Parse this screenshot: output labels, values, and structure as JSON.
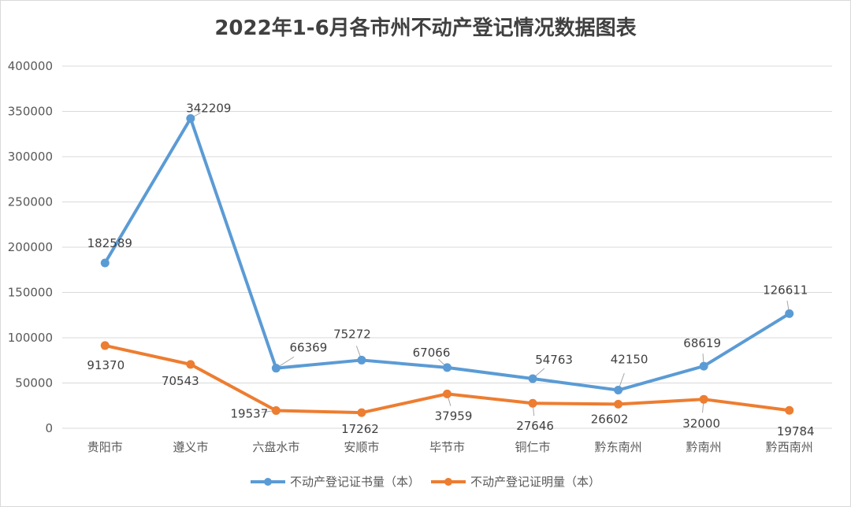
{
  "chart_data": {
    "type": "line",
    "title": "2022年1-6月各市州不动产登记情况数据图表",
    "categories": [
      "贵阳市",
      "遵义市",
      "六盘水市",
      "安顺市",
      "毕节市",
      "铜仁市",
      "黔东南州",
      "黔南州",
      "黔西南州"
    ],
    "ylim": [
      0,
      400000
    ],
    "yticks": [
      0,
      50000,
      100000,
      150000,
      200000,
      250000,
      300000,
      350000,
      400000
    ],
    "grid": true,
    "legend_position": "bottom",
    "series": [
      {
        "name": "不动产登记证书量（本）",
        "color": "#5B9BD5",
        "values": [
          182589,
          342209,
          66369,
          75272,
          67066,
          54763,
          42150,
          68619,
          126611
        ]
      },
      {
        "name": "不动产登记证明量（本）",
        "color": "#ED7D31",
        "values": [
          91370,
          70543,
          19537,
          17262,
          37959,
          27646,
          26602,
          32000,
          19784
        ]
      }
    ]
  }
}
